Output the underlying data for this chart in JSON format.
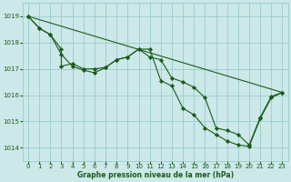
{
  "background_color": "#cce8e8",
  "grid_color": "#99cccc",
  "line_color": "#1a5c1a",
  "xlabel": "Graphe pression niveau de la mer (hPa)",
  "xlim": [
    -0.5,
    23.5
  ],
  "ylim": [
    1013.5,
    1019.5
  ],
  "yticks": [
    1014,
    1015,
    1016,
    1017,
    1018,
    1019
  ],
  "xticks": [
    0,
    1,
    2,
    3,
    4,
    5,
    6,
    7,
    8,
    9,
    10,
    11,
    12,
    13,
    14,
    15,
    16,
    17,
    18,
    19,
    20,
    21,
    22,
    23
  ],
  "trend_line": {
    "x": [
      0,
      23
    ],
    "y": [
      1019.0,
      1016.1
    ]
  },
  "series_markers": {
    "x": [
      0,
      1,
      2,
      3,
      4,
      5,
      6,
      7,
      8,
      9,
      10,
      11,
      12,
      13,
      14,
      15,
      16,
      17,
      18,
      19,
      20,
      21,
      22,
      23
    ],
    "y": [
      1019.0,
      1018.55,
      1018.3,
      1017.55,
      1017.1,
      1016.95,
      1016.85,
      1017.05,
      1017.35,
      1017.45,
      1017.75,
      1017.75,
      1016.55,
      1016.35,
      1015.5,
      1015.25,
      1014.75,
      1014.5,
      1014.25,
      1014.1,
      1014.05,
      1015.1,
      1015.9,
      1016.1
    ]
  },
  "series_line2": {
    "x": [
      0,
      1,
      2,
      3,
      3,
      4,
      5,
      6,
      7,
      8,
      9,
      10,
      11,
      12,
      13,
      14,
      15,
      16,
      17,
      18,
      19,
      20,
      21,
      22,
      23
    ],
    "y": [
      1019.0,
      1018.55,
      1018.3,
      1017.75,
      1017.1,
      1017.2,
      1017.0,
      1017.0,
      1017.05,
      1017.35,
      1017.45,
      1017.75,
      1017.45,
      1017.35,
      1016.65,
      1016.5,
      1016.3,
      1015.9,
      1014.75,
      1014.65,
      1014.5,
      1014.1,
      1015.15,
      1015.95,
      1016.1
    ]
  }
}
